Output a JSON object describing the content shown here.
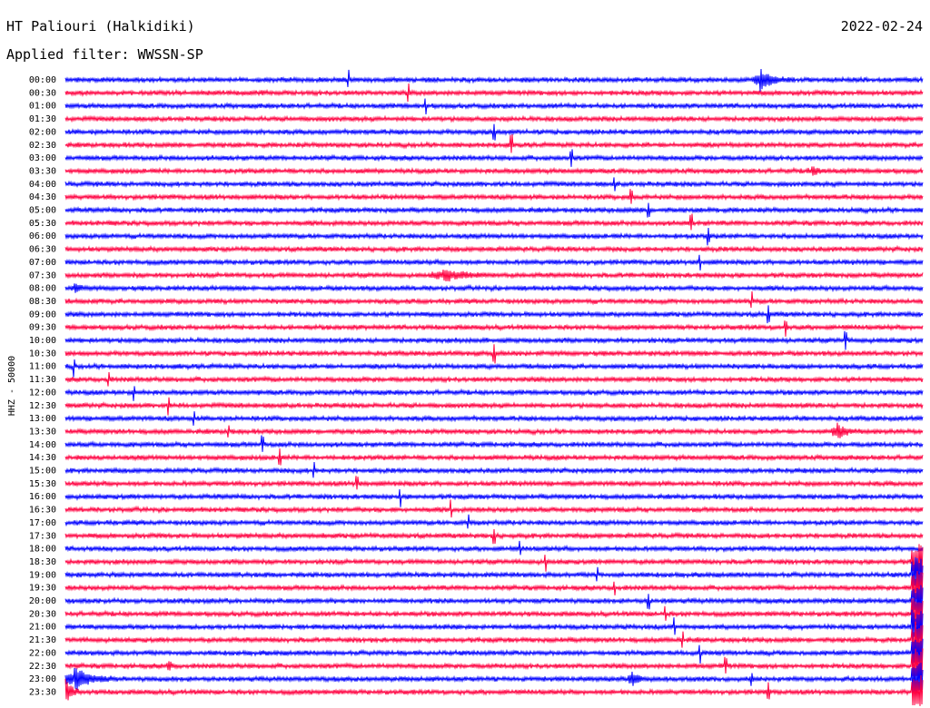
{
  "header": {
    "station": "HT Paliouri (Halkidiki)",
    "filter": "Applied filter: WWSSN-SP",
    "date": "2022-02-24"
  },
  "chart_data": {
    "type": "line",
    "title": "HT Paliouri (Halkidiki)",
    "ylabel": "HHZ - 50000",
    "colors": [
      "#0000ff",
      "#ff0040"
    ],
    "rows": [
      "00:00",
      "00:30",
      "01:00",
      "01:30",
      "02:00",
      "02:30",
      "03:00",
      "03:30",
      "04:00",
      "04:30",
      "05:00",
      "05:30",
      "06:00",
      "06:30",
      "07:00",
      "07:30",
      "08:00",
      "08:30",
      "09:00",
      "09:30",
      "10:00",
      "10:30",
      "11:00",
      "11:30",
      "12:00",
      "12:30",
      "13:00",
      "13:30",
      "14:00",
      "14:30",
      "15:00",
      "15:30",
      "16:00",
      "16:30",
      "17:00",
      "17:30",
      "18:00",
      "18:30",
      "19:00",
      "19:30",
      "20:00",
      "20:30",
      "21:00",
      "21:30",
      "22:00",
      "22:30",
      "23:00",
      "23:30"
    ],
    "noise": [
      3,
      3,
      3,
      3,
      3,
      3,
      3,
      3,
      3,
      3,
      3,
      3,
      3,
      3,
      3,
      3,
      3,
      3,
      3,
      3,
      3,
      3,
      3,
      3,
      3,
      3,
      3,
      3,
      3,
      3,
      3,
      3,
      3,
      3,
      3,
      3,
      3,
      3,
      3,
      3,
      3,
      3,
      3,
      3,
      3,
      3,
      3,
      3
    ],
    "events": [
      {
        "row": 0,
        "x": 0.81,
        "amp": 12,
        "dur": 0.04
      },
      {
        "row": 7,
        "x": 0.87,
        "amp": 4,
        "dur": 0.03
      },
      {
        "row": 15,
        "x": 0.44,
        "amp": 6,
        "dur": 0.07
      },
      {
        "row": 16,
        "x": 0.01,
        "amp": 5,
        "dur": 0.02
      },
      {
        "row": 27,
        "x": 0.9,
        "amp": 8,
        "dur": 0.03
      },
      {
        "row": 45,
        "x": 0.12,
        "amp": 8,
        "dur": 0.01
      },
      {
        "row": 46,
        "x": 0.01,
        "amp": 14,
        "dur": 0.05
      },
      {
        "row": 46,
        "x": 0.66,
        "amp": 10,
        "dur": 0.02
      },
      {
        "row": 47,
        "x": 0.0,
        "amp": 14,
        "dur": 0.02
      }
    ],
    "spikes": [
      {
        "row": 0,
        "x": 0.33
      },
      {
        "row": 1,
        "x": 0.4
      },
      {
        "row": 2,
        "x": 0.42
      },
      {
        "row": 4,
        "x": 0.5
      },
      {
        "row": 5,
        "x": 0.52
      },
      {
        "row": 6,
        "x": 0.59
      },
      {
        "row": 8,
        "x": 0.64
      },
      {
        "row": 9,
        "x": 0.66
      },
      {
        "row": 10,
        "x": 0.68
      },
      {
        "row": 11,
        "x": 0.73
      },
      {
        "row": 12,
        "x": 0.75
      },
      {
        "row": 14,
        "x": 0.74
      },
      {
        "row": 17,
        "x": 0.8
      },
      {
        "row": 18,
        "x": 0.82
      },
      {
        "row": 19,
        "x": 0.84
      },
      {
        "row": 20,
        "x": 0.91
      },
      {
        "row": 21,
        "x": 0.5
      },
      {
        "row": 22,
        "x": 0.01
      },
      {
        "row": 23,
        "x": 0.05
      },
      {
        "row": 24,
        "x": 0.08
      },
      {
        "row": 25,
        "x": 0.12
      },
      {
        "row": 26,
        "x": 0.15
      },
      {
        "row": 27,
        "x": 0.19
      },
      {
        "row": 28,
        "x": 0.23
      },
      {
        "row": 29,
        "x": 0.25
      },
      {
        "row": 30,
        "x": 0.29
      },
      {
        "row": 31,
        "x": 0.34
      },
      {
        "row": 32,
        "x": 0.39
      },
      {
        "row": 33,
        "x": 0.45
      },
      {
        "row": 34,
        "x": 0.47
      },
      {
        "row": 35,
        "x": 0.5
      },
      {
        "row": 36,
        "x": 0.53
      },
      {
        "row": 37,
        "x": 0.56
      },
      {
        "row": 38,
        "x": 0.62
      },
      {
        "row": 39,
        "x": 0.64
      },
      {
        "row": 40,
        "x": 0.68
      },
      {
        "row": 41,
        "x": 0.7
      },
      {
        "row": 42,
        "x": 0.71
      },
      {
        "row": 43,
        "x": 0.72
      },
      {
        "row": 44,
        "x": 0.74
      },
      {
        "row": 45,
        "x": 0.77
      },
      {
        "row": 46,
        "x": 0.8
      },
      {
        "row": 47,
        "x": 0.82
      }
    ],
    "end_burst": {
      "from_row": 37,
      "to_row": 47,
      "x": 0.995,
      "amp": 20
    },
    "ylim": [
      0,
      48
    ]
  }
}
